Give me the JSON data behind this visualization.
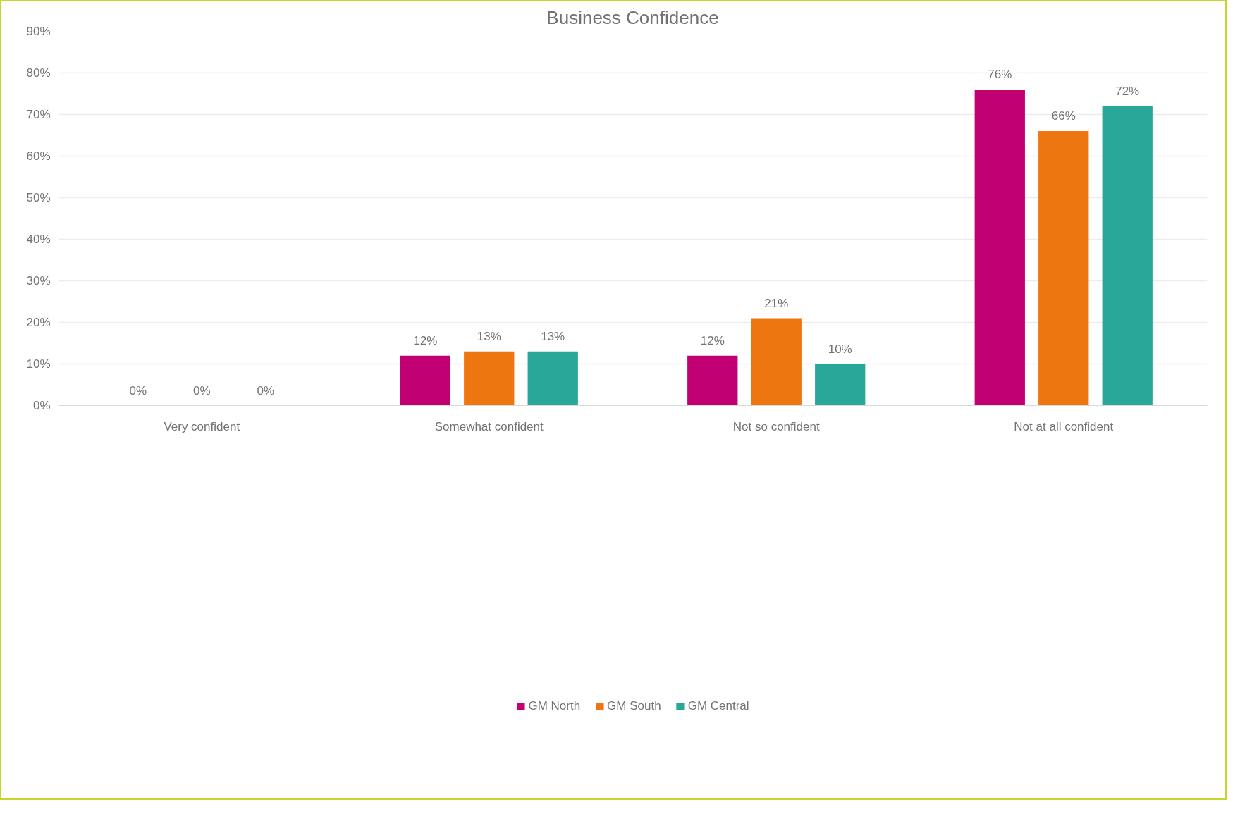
{
  "chart_data": {
    "type": "bar",
    "title": "Business Confidence",
    "categories": [
      "Very confident",
      "Somewhat confident",
      "Not so confident",
      "Not at all confident"
    ],
    "series": [
      {
        "name": "GM North",
        "color": "#c00073",
        "values": [
          0,
          12,
          12,
          76
        ]
      },
      {
        "name": "GM South",
        "color": "#ee7611",
        "values": [
          0,
          13,
          21,
          66
        ]
      },
      {
        "name": "GM Central",
        "color": "#29a89a",
        "values": [
          0,
          13,
          10,
          72
        ]
      }
    ],
    "ylim": [
      0,
      90
    ],
    "yticks": [
      {
        "value": 0,
        "label": "0%"
      },
      {
        "value": 10,
        "label": "10%"
      },
      {
        "value": 20,
        "label": "20%"
      },
      {
        "value": 30,
        "label": "30%"
      },
      {
        "value": 40,
        "label": "40%"
      },
      {
        "value": 50,
        "label": "50%"
      },
      {
        "value": 60,
        "label": "60%"
      },
      {
        "value": 70,
        "label": "70%"
      },
      {
        "value": 80,
        "label": "80%"
      },
      {
        "value": 90,
        "label": "90%"
      }
    ],
    "value_labels": [
      [
        "0%",
        "12%",
        "12%",
        "76%"
      ],
      [
        "0%",
        "13%",
        "21%",
        "66%"
      ],
      [
        "0%",
        "13%",
        "10%",
        "72%"
      ]
    ],
    "grid": "y",
    "legend": "bottom"
  }
}
